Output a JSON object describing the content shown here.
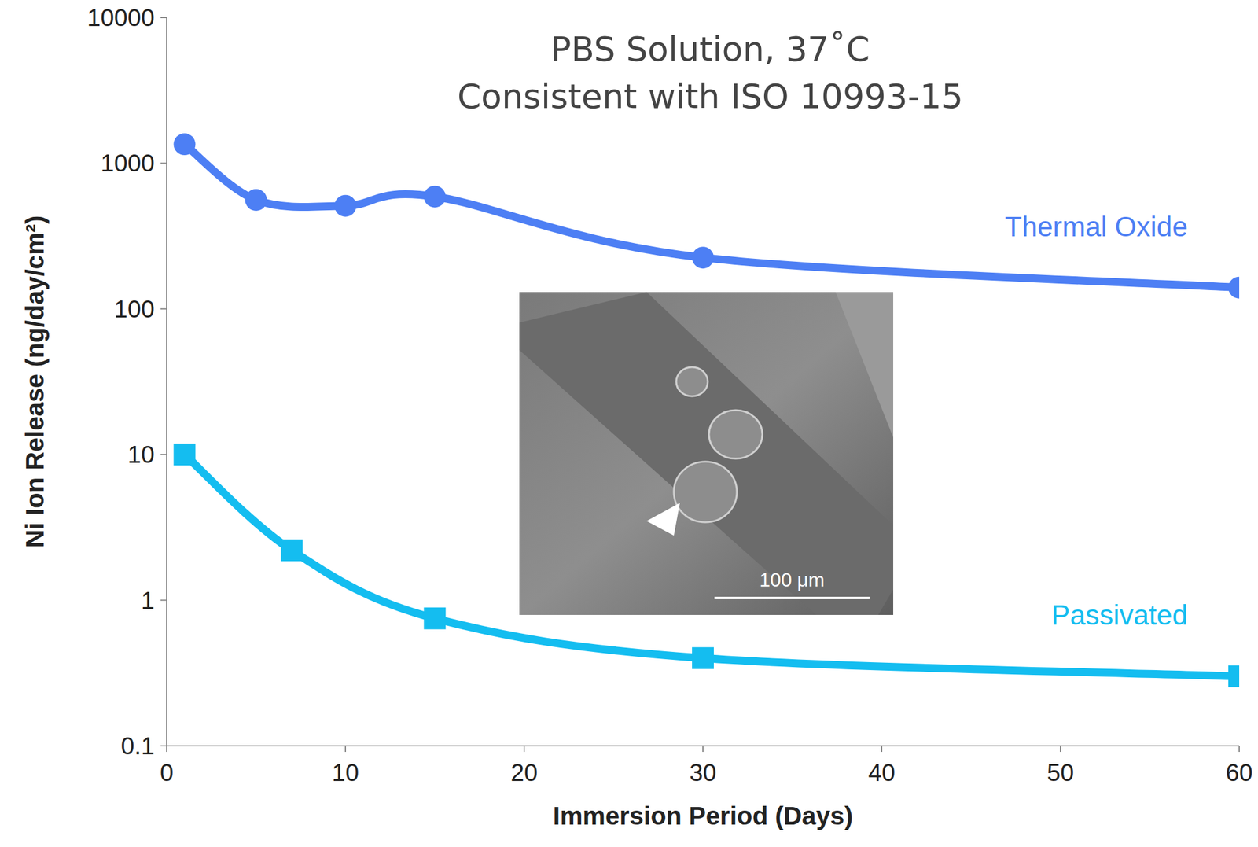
{
  "chart_data": {
    "type": "line",
    "title": "PBS Solution, 37˚C",
    "subtitle": "Consistent with ISO 10993-15",
    "x_label": "Immersion Period (Days)",
    "y_label": "Ni Ion Release (ng/day/cm²)",
    "log": "y",
    "grid": false,
    "xlim": [
      0,
      60
    ],
    "xticks": [
      0,
      10,
      20,
      30,
      40,
      50,
      60
    ],
    "ylim": [
      0.1,
      10000
    ],
    "yticks": [
      0.1,
      1,
      10,
      100,
      1000,
      10000
    ],
    "annotations": [
      "100 μm"
    ],
    "series": [
      {
        "name": "Thermal Oxide",
        "color": "#4d7ff4",
        "marker": "circle",
        "x": [
          1,
          5,
          10,
          15,
          30,
          60
        ],
        "values": [
          1350,
          560,
          510,
          590,
          225,
          140
        ]
      },
      {
        "name": "Passivated",
        "color": "#14bdf0",
        "marker": "square",
        "x": [
          1,
          7,
          15,
          30,
          60
        ],
        "values": [
          10,
          2.2,
          0.75,
          0.4,
          0.3
        ]
      }
    ]
  }
}
